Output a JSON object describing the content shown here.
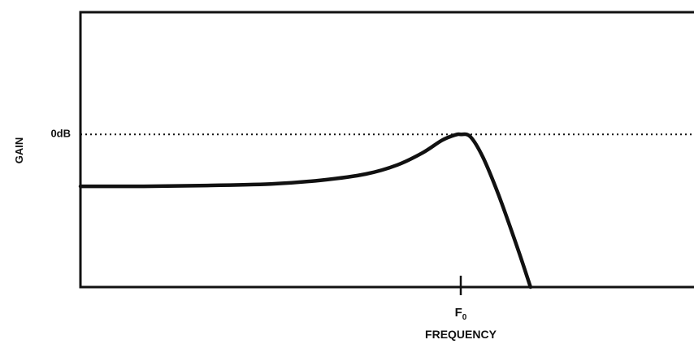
{
  "chart_data": {
    "type": "line",
    "title": "",
    "xlabel": "FREQUENCY",
    "ylabel": "GAIN",
    "x_tick_labels": [
      {
        "label": "F",
        "sub": "0",
        "x": 6.0
      }
    ],
    "y_tick_labels": [
      {
        "label": "0dB",
        "y": 0
      }
    ],
    "reference_lines": [
      {
        "y": 0,
        "style": "dotted"
      }
    ],
    "xlim": [
      0,
      10
    ],
    "ylim": [
      -10,
      8
    ],
    "grid": false,
    "series": [
      {
        "points": [
          [
            0.0,
            -3.4
          ],
          [
            1.0,
            -3.4
          ],
          [
            2.0,
            -3.35
          ],
          [
            3.0,
            -3.25
          ],
          [
            3.8,
            -3.0
          ],
          [
            4.5,
            -2.6
          ],
          [
            5.0,
            -2.0
          ],
          [
            5.4,
            -1.2
          ],
          [
            5.7,
            -0.4
          ],
          [
            5.9,
            -0.05
          ],
          [
            6.0,
            0.0
          ],
          [
            6.15,
            -0.15
          ],
          [
            6.35,
            -1.5
          ],
          [
            6.6,
            -4.0
          ],
          [
            6.9,
            -7.5
          ],
          [
            7.1,
            -10.0
          ]
        ]
      }
    ]
  }
}
